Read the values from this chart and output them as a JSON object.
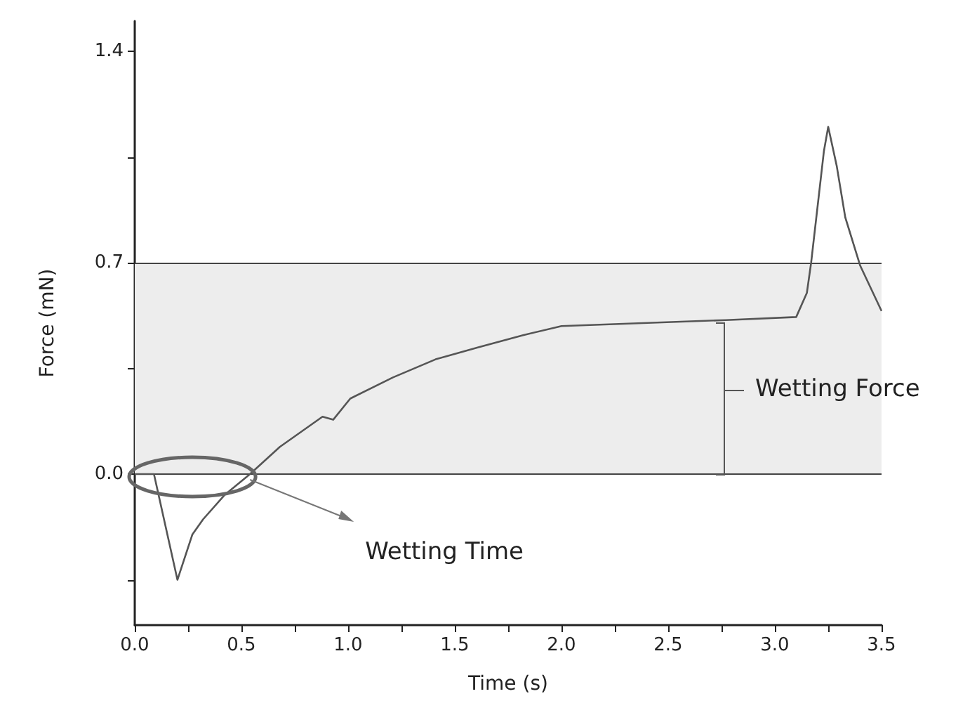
{
  "chart_data": {
    "type": "line",
    "xlabel": "Time (s)",
    "ylabel": "Force (mN)",
    "x": [
      0,
      0.09,
      0.2,
      0.27,
      0.32,
      0.42,
      0.54,
      0.68,
      0.88,
      0.93,
      1.01,
      1.21,
      1.41,
      1.61,
      1.82,
      2.0,
      2.77,
      3.1,
      3.15,
      3.17,
      3.23,
      3.25,
      3.29,
      3.33,
      3.4,
      3.5
    ],
    "series": [
      {
        "color": "#555555",
        "values": [
          0,
          0,
          -0.35,
          -0.2,
          -0.15,
          -0.07,
          0,
          0.09,
          0.19,
          0.18,
          0.25,
          0.32,
          0.38,
          0.42,
          0.46,
          0.49,
          0.51,
          0.52,
          0.6,
          0.7,
          1.07,
          1.15,
          1.02,
          0.85,
          0.69,
          0.54
        ]
      }
    ],
    "xlim": [
      0,
      3.5
    ],
    "ylim": [
      -0.5,
      1.5
    ],
    "xticks": [
      {
        "value": 0,
        "label": "0.0"
      },
      {
        "value": 0.25,
        "label": null
      },
      {
        "value": 0.5,
        "label": "0.5"
      },
      {
        "value": 0.75,
        "label": null
      },
      {
        "value": 1,
        "label": "1.0"
      },
      {
        "value": 1.25,
        "label": null
      },
      {
        "value": 1.5,
        "label": "1.5"
      },
      {
        "value": 1.75,
        "label": null
      },
      {
        "value": 2,
        "label": "2.0"
      },
      {
        "value": 2.25,
        "label": null
      },
      {
        "value": 2.5,
        "label": "2.5"
      },
      {
        "value": 2.75,
        "label": null
      },
      {
        "value": 3,
        "label": "3.0"
      },
      {
        "value": 3.25,
        "label": null
      },
      {
        "value": 3.5,
        "label": "3.5"
      }
    ],
    "yticks": [
      {
        "value": -0.35,
        "label": null
      },
      {
        "value": 0,
        "label": "0.0"
      },
      {
        "value": 0.35,
        "label": null
      },
      0.7,
      {
        "value": 1.05,
        "label": null
      },
      1.4
    ],
    "ref_lines": [
      {
        "axis": "y",
        "value": 0.7,
        "color": "#444444"
      },
      {
        "axis": "y",
        "value": 0,
        "color": "#444444"
      }
    ],
    "bands": [
      {
        "axis": "y",
        "from": 0,
        "to": 0.7,
        "color": "#ededed"
      }
    ],
    "annotations": [
      {
        "text": "Wetting Time",
        "x": 0.54,
        "y": 0
      },
      "Wetting Force"
    ],
    "grid": false,
    "marker": "none",
    "line_style": "solid"
  }
}
